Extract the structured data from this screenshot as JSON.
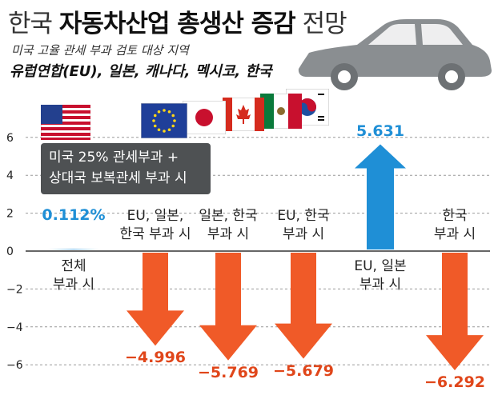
{
  "header": {
    "title_light_1": "한국",
    "title_bold": "자동차산업 총생산 증감",
    "title_light_2": "전망",
    "subtitle": "미국 고율 관세 부과 검토 대상 지역",
    "countries": "유럽연합(EU), 일본, 캐나다, 멕시코, 한국"
  },
  "callout": {
    "line1": "미국 25% 관세부과 +",
    "line2": "상대국 보복관세 부과 시"
  },
  "icons": [
    "car-silhouette-icon",
    "us-flag-icon",
    "eu-flag-icon",
    "japan-flag-icon",
    "canada-flag-icon",
    "mexico-flag-icon",
    "korea-flag-icon"
  ],
  "colors": {
    "positive": "#1f8fd6",
    "negative": "#f05a28",
    "callout_bg": "#4e5153",
    "car": "#8a8e91"
  },
  "chart_data": {
    "type": "bar",
    "ylim": [
      -7,
      8
    ],
    "yticks": [
      "6",
      "4",
      "2",
      "0",
      "−2",
      "−4",
      "−6"
    ],
    "ytick_values": [
      6,
      4,
      2,
      0,
      -2,
      -4,
      -6
    ],
    "categories": [
      {
        "line1": "전체",
        "line2": "부과 시"
      },
      {
        "line1": "EU, 일본,",
        "line2": "한국 부과 시"
      },
      {
        "line1": "일본, 한국",
        "line2": "부과 시"
      },
      {
        "line1": "EU, 한국",
        "line2": "부과 시"
      },
      {
        "line1": "EU, 일본",
        "line2": "부과 시"
      },
      {
        "line1": "한국",
        "line2": "부과 시"
      }
    ],
    "values": [
      0.112,
      -4.996,
      -5.769,
      -5.679,
      5.631,
      -6.292
    ],
    "value_labels": [
      "0.112%",
      "−4.996",
      "−5.769",
      "−5.679",
      "5.631",
      "−6.292"
    ]
  }
}
